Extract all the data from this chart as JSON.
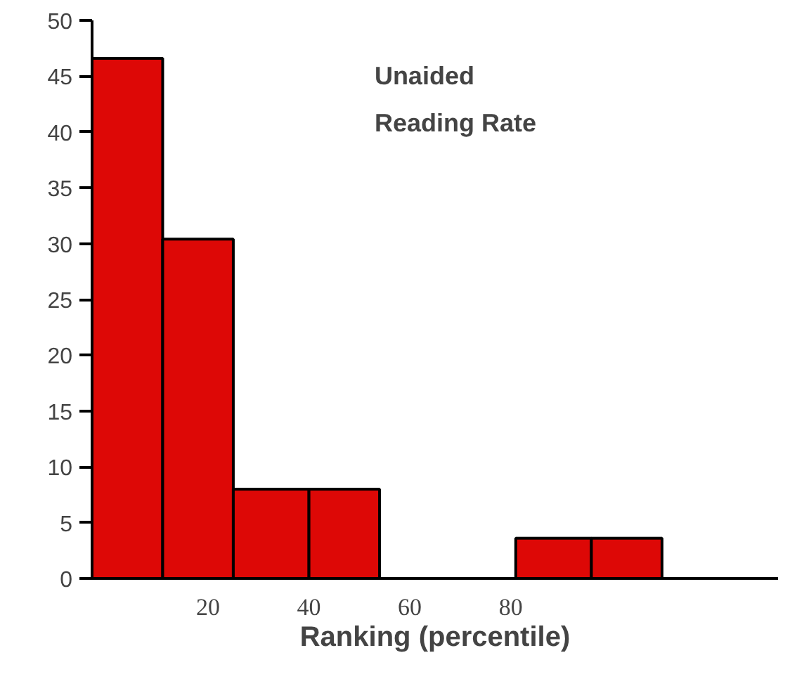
{
  "chart_data": {
    "type": "histogram",
    "title": "Unaided\nReading Rate",
    "xlabel": "Ranking (percentile)",
    "bins": [
      -3,
      11,
      25,
      40,
      54,
      81,
      96,
      110
    ],
    "values": [
      46.6,
      30.4,
      8,
      8,
      null,
      3.6,
      3.6
    ],
    "color": "#dd0806",
    "xlim": [
      -3,
      133
    ],
    "ylim": [
      0,
      50
    ],
    "xticks": [
      20,
      40,
      60,
      80
    ],
    "yticks": [
      0,
      5,
      10,
      15,
      20,
      25,
      30,
      35,
      40,
      45,
      50
    ]
  }
}
